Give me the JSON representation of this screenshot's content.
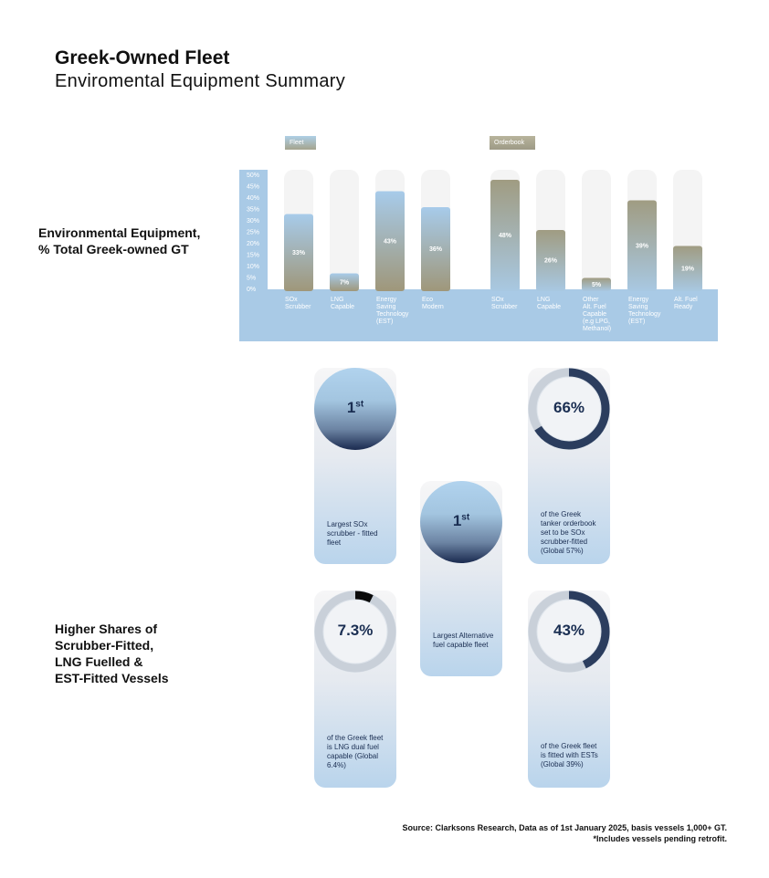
{
  "header": {
    "title": "Greek-Owned Fleet",
    "subtitle": "Enviromental Equipment Summary"
  },
  "side_labels": {
    "environmental": [
      "Environmental Equipment,",
      "% Total Greek-owned GT"
    ],
    "higher_shares": [
      "Higher Shares of",
      "Scrubber-Fitted,",
      "LNG Fuelled &",
      "EST-Fitted Vessels"
    ]
  },
  "legend": {
    "fleet": "Fleet",
    "orderbook": "Orderbook"
  },
  "chart_data": {
    "type": "bar",
    "ylabel": "",
    "ylim": [
      0,
      50
    ],
    "yticks": [
      "50%",
      "45%",
      "40%",
      "35%",
      "30%",
      "25%",
      "20%",
      "15%",
      "10%",
      "5%",
      "0%"
    ],
    "grid": false,
    "series": [
      {
        "name": "Fleet",
        "categories": [
          [
            "SOx",
            "Scrubber"
          ],
          [
            "LNG",
            "Capable"
          ],
          [
            "Energy",
            "Saving",
            "Technology",
            "(EST)"
          ],
          [
            "Eco",
            "Modern"
          ]
        ],
        "values": [
          33,
          7,
          43,
          36
        ],
        "labels": [
          "33%",
          "7%",
          "43%",
          "36%"
        ]
      },
      {
        "name": "Orderbook",
        "categories": [
          [
            "SOx",
            "Scrubber"
          ],
          [
            "LNG",
            "Capable"
          ],
          [
            "Other",
            "Alt. Fuel",
            "Capable",
            "(e.g LPG,",
            "Methanol)"
          ],
          [
            "Energy",
            "Saving",
            "Technology",
            "(EST)"
          ],
          [
            "Alt. Fuel",
            "Ready"
          ]
        ],
        "values": [
          48,
          26,
          5,
          39,
          19
        ],
        "labels": [
          "48%",
          "26%",
          "5%",
          "39%",
          "19%"
        ]
      }
    ],
    "colors": {
      "panel": "#a9cae6",
      "track": "#f4f4f4",
      "fleet_top": "#a7cbea",
      "fleet_bottom": "#9f977a",
      "orderbook_top": "#a09c82",
      "orderbook_bottom": "#a8c8e2"
    }
  },
  "stats": {
    "card1": {
      "value": "1",
      "sup": "st",
      "text": "Largest SOx scrubber - fitted fleet"
    },
    "card2": {
      "value": "66%",
      "fraction": 0.66,
      "text": "of the Greek tanker orderbook set to be SOx scrubber-fitted (Global 57%)"
    },
    "card3": {
      "value": "1",
      "sup": "st",
      "text": "Largest Alternative fuel capable fleet"
    },
    "card4": {
      "value": "7.3%",
      "fraction": 0.073,
      "text": "of the Greek fleet is LNG dual fuel capable (Global 6.4%)"
    },
    "card5": {
      "value": "43%",
      "fraction": 0.43,
      "text": "of the Greek fleet is fitted with ESTs (Global 39%)"
    }
  },
  "source": {
    "line1": "Source: Clarksons Research, Data as of 1st January 2025, basis vessels 1,000+ GT.",
    "line2": "*Includes vessels pending retrofit."
  }
}
